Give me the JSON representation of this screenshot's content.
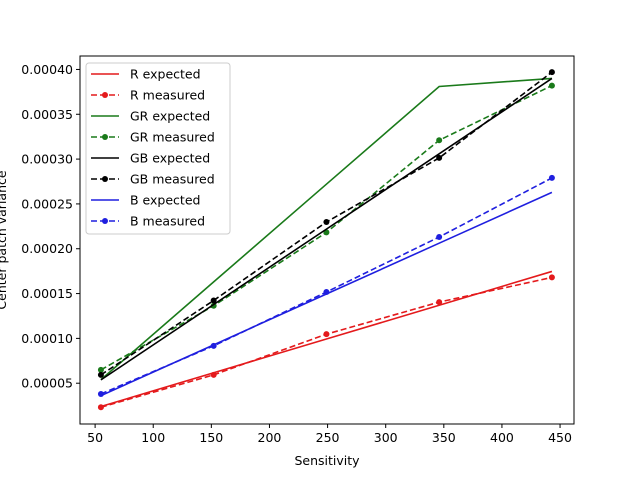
{
  "chart_data": {
    "type": "line",
    "title": "",
    "xlabel": "Sensitivity",
    "ylabel": "Center patch variance",
    "xlim": [
      37,
      462
    ],
    "ylim": [
      4.5e-06,
      0.000415
    ],
    "xticks": [
      50,
      100,
      150,
      200,
      250,
      300,
      350,
      400,
      450
    ],
    "yticks": [
      5e-05,
      0.0001,
      0.00015,
      0.0002,
      0.00025,
      0.0003,
      0.00035,
      0.0004
    ],
    "ytick_labels": [
      "0.00005",
      "0.00010",
      "0.00015",
      "0.00020",
      "0.00025",
      "0.00030",
      "0.00035",
      "0.00040"
    ],
    "grid": false,
    "legend_position": "upper-left",
    "x": [
      55,
      152,
      249,
      346,
      443
    ],
    "series": [
      {
        "name": "R expected",
        "color": "#e41a1c",
        "style": "solid",
        "markers": false,
        "values": [
          2.4e-05,
          6.17e-05,
          9.93e-05,
          0.000137,
          0.0001747
        ]
      },
      {
        "name": "R measured",
        "color": "#e41a1c",
        "style": "dashed",
        "markers": true,
        "values": [
          2.32e-05,
          5.93e-05,
          0.0001047,
          0.0001405,
          0.000168
        ]
      },
      {
        "name": "GR expected",
        "color": "#1a7a1a",
        "style": "solid",
        "markers": false,
        "values": [
          5.4e-05,
          0.000163,
          0.000272,
          0.000381,
          0.00039
        ]
      },
      {
        "name": "GR measured",
        "color": "#1a7a1a",
        "style": "dashed",
        "markers": true,
        "values": [
          6.49e-05,
          0.0001364,
          0.0002182,
          0.000321,
          0.000382
        ]
      },
      {
        "name": "GB expected",
        "color": "#000000",
        "style": "solid",
        "markers": false,
        "values": [
          5.37e-05,
          0.0001378,
          0.0002219,
          0.0003059,
          0.00039
        ]
      },
      {
        "name": "GB measured",
        "color": "#000000",
        "style": "dashed",
        "markers": true,
        "values": [
          5.93e-05,
          0.0001423,
          0.0002298,
          0.0003013,
          0.000397
        ]
      },
      {
        "name": "B expected",
        "color": "#1f1fdf",
        "style": "solid",
        "markers": false,
        "values": [
          3.61e-05,
          9.28e-05,
          0.0001495,
          0.0002062,
          0.0002629
        ]
      },
      {
        "name": "B measured",
        "color": "#1f1fdf",
        "style": "dashed",
        "markers": true,
        "values": [
          3.8e-05,
          9.17e-05,
          0.0001517,
          0.0002131,
          0.000279
        ]
      }
    ]
  }
}
